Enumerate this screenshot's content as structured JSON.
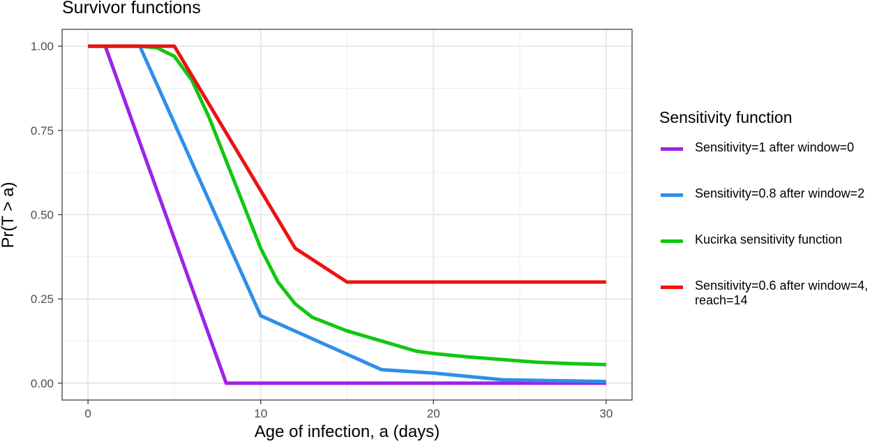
{
  "chart_data": {
    "type": "line",
    "title": "Survivor functions",
    "xlabel": "Age of infection, a (days)",
    "ylabel": "Pr(T > a)",
    "xlim": [
      -1.5,
      31.5
    ],
    "ylim": [
      -0.05,
      1.05
    ],
    "x_ticks": [
      0,
      10,
      20,
      30
    ],
    "x_tick_labels": [
      "0",
      "10",
      "20",
      "30"
    ],
    "y_ticks": [
      0,
      0.25,
      0.5,
      0.75,
      1
    ],
    "y_tick_labels": [
      "0.00",
      "0.25",
      "0.50",
      "0.75",
      "1.00"
    ],
    "grid": true,
    "legend": {
      "title": "Sensitivity function",
      "position": "right"
    },
    "series": [
      {
        "name": "Sensitivity=1 after window=0",
        "color": "#9b24e6",
        "points": [
          [
            0,
            1
          ],
          [
            1,
            1
          ],
          [
            8,
            0
          ],
          [
            30,
            0
          ]
        ]
      },
      {
        "name": "Sensitivity=0.8 after window=2",
        "color": "#2d8fe9",
        "points": [
          [
            0,
            1
          ],
          [
            3,
            1
          ],
          [
            10,
            0.2
          ],
          [
            17,
            0.04
          ],
          [
            20,
            0.03
          ],
          [
            24,
            0.01
          ],
          [
            30,
            0.005
          ]
        ]
      },
      {
        "name": "Kucirka sensitivity function",
        "color": "#11c711",
        "points": [
          [
            0,
            1
          ],
          [
            3,
            1
          ],
          [
            4,
            0.995
          ],
          [
            5,
            0.97
          ],
          [
            6,
            0.9
          ],
          [
            7,
            0.79
          ],
          [
            8,
            0.66
          ],
          [
            9,
            0.53
          ],
          [
            10,
            0.4
          ],
          [
            11,
            0.3
          ],
          [
            12,
            0.235
          ],
          [
            13,
            0.195
          ],
          [
            15,
            0.155
          ],
          [
            17,
            0.125
          ],
          [
            19,
            0.095
          ],
          [
            20,
            0.088
          ],
          [
            22,
            0.078
          ],
          [
            24,
            0.07
          ],
          [
            26,
            0.062
          ],
          [
            28,
            0.058
          ],
          [
            30,
            0.055
          ]
        ]
      },
      {
        "name": "Sensitivity=0.6 after window=4,\nreach=14",
        "color": "#ee1111",
        "points": [
          [
            0,
            1
          ],
          [
            5,
            1
          ],
          [
            12,
            0.4
          ],
          [
            15,
            0.3
          ],
          [
            30,
            0.3
          ]
        ]
      }
    ]
  }
}
